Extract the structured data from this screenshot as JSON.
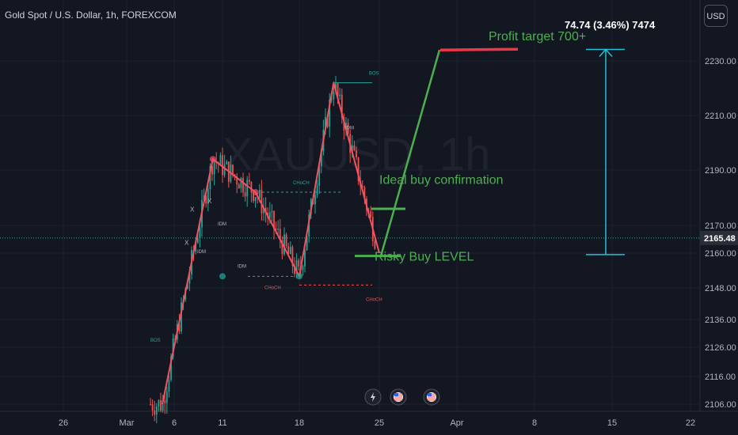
{
  "header": {
    "symbol_title": "Gold Spot / U.S. Dollar, 1h, FOREXCOM",
    "currency_button": "USD",
    "watermark": "XAUUSD, 1h"
  },
  "annotations": {
    "profit_target": "Profit target 700+",
    "ideal_buy": "Ideal buy confirmation",
    "risky_buy": "Risky Buy LEVEL",
    "measure_readout": "74.74 (3.46%) 7474",
    "bos_labels": [
      "BOS",
      "BOS"
    ],
    "choch_labels": [
      "CHoCH",
      "CHoCH",
      "CHoCH"
    ],
    "idm_labels": [
      "IDM",
      "IDM",
      "IDM",
      "IDM"
    ],
    "x_marks": [
      "X",
      "X",
      "X"
    ]
  },
  "colors": {
    "background": "#131722",
    "up_candle": "#26a69a",
    "down_candle": "#ef5350",
    "zigzag": "#f5515f",
    "projection": "#4caf50",
    "measure": "#22c1d6",
    "target_line": "#f23645",
    "price_tag": "#2a2e39"
  },
  "chart_data": {
    "type": "candlestick",
    "title": "Gold Spot / U.S. Dollar, 1h, FOREXCOM",
    "y_axis": {
      "ticks": [
        2106.0,
        2116.0,
        2126.0,
        2136.0,
        2148.0,
        2160.0,
        2170.0,
        2190.0,
        2210.0,
        2230.0
      ],
      "labels": [
        "2106.00",
        "2116.00",
        "2126.00",
        "2136.00",
        "2148.00",
        "2160.00",
        "2170.00",
        "2190.00",
        "2210.00",
        "2230.00"
      ],
      "last_price": 2165.48,
      "last_price_label": "2165.48"
    },
    "x_axis": {
      "labels": [
        "26",
        "Mar",
        "6",
        "11",
        "18",
        "25",
        "Apr",
        "8",
        "15",
        "22"
      ]
    },
    "zigzag": [
      {
        "date": "Mar 5",
        "price": 2106
      },
      {
        "date": "Mar 10",
        "price": 2194
      },
      {
        "date": "Mar 14",
        "price": 2182
      },
      {
        "date": "Mar 18",
        "price": 2152
      },
      {
        "date": "Mar 21",
        "price": 2222
      },
      {
        "date": "Mar 25",
        "price": 2160
      }
    ],
    "projection": [
      {
        "date": "Mar 25",
        "price": 2160
      },
      {
        "date": "Mar 27",
        "price": 2160
      },
      {
        "date": "Mar 30",
        "price": 2234
      }
    ],
    "target": {
      "price": 2234,
      "label": "Profit target 700+"
    },
    "ideal_buy_level": 2176,
    "risky_buy_level": 2159,
    "measure": {
      "from": 2159.5,
      "to": 2234.2,
      "label": "74.74 (3.46%) 7474"
    },
    "bos_level": 2222,
    "choch_levels": [
      2182,
      2152
    ],
    "icons": [
      "lightning-icon",
      "us-flag-icon",
      "us-flag-icon"
    ]
  }
}
